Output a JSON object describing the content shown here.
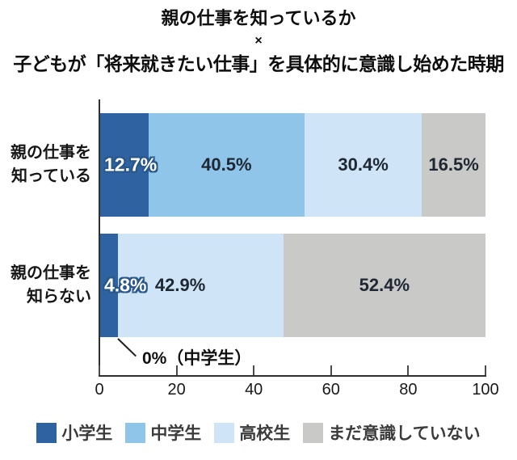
{
  "title": {
    "line1": "親の仕事を知っているか",
    "line2": "×",
    "line3": "子どもが「将来就きたい仕事」を具体的に意識し始めた時期"
  },
  "chart_data": {
    "type": "bar",
    "orientation": "horizontal",
    "stacked": true,
    "grid": false,
    "legend_position": "bottom",
    "x_axis": {
      "min": 0,
      "max": 100,
      "ticks": [
        0,
        20,
        40,
        60,
        80,
        100
      ]
    },
    "categories": [
      {
        "label_lines": [
          "親の仕事を",
          "知っている"
        ]
      },
      {
        "label_lines": [
          "親の仕事を",
          "知らない"
        ]
      }
    ],
    "series": [
      {
        "name": "小学生",
        "color": "#2f62a0",
        "values": [
          12.7,
          4.8
        ]
      },
      {
        "name": "中学生",
        "color": "#8fc5e9",
        "values": [
          40.5,
          0.0
        ]
      },
      {
        "name": "高校生",
        "color": "#cfe4f6",
        "values": [
          30.4,
          42.9
        ]
      },
      {
        "name": "まだ意識していない",
        "color": "#c9c9c7",
        "values": [
          16.5,
          52.4
        ]
      }
    ],
    "bar_labels": [
      [
        {
          "text": "12.7%",
          "style": "outline"
        },
        {
          "text": "40.5%",
          "style": "center"
        },
        {
          "text": "30.4%",
          "style": "center"
        },
        {
          "text": "16.5%",
          "style": "center"
        }
      ],
      [
        {
          "text": "4.8%",
          "style": "outline"
        },
        {
          "text": null,
          "style": "none"
        },
        {
          "text": "42.9%",
          "style": "left"
        },
        {
          "text": "52.4%",
          "style": "center"
        }
      ]
    ],
    "annotation": {
      "text": "0%（中学生）"
    }
  }
}
